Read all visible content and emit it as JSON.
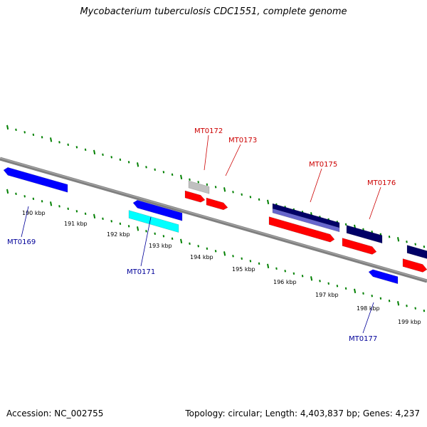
{
  "title": "Mycobacterium tuberculosis CDC1551, complete genome",
  "footer": {
    "accession": "Accession: NC_002755",
    "summary": "Topology: circular; Length: 4,403,837 bp; Genes: 4,237"
  },
  "colors": {
    "forward_gene": "#ff0000",
    "reverse_gene": "#0000ff",
    "dark_gene": "#000066",
    "lavender_gene": "#6666cc",
    "cyan_gene": "#00ffff",
    "grey_gene": "#c0c0c0",
    "backbone": "#808080",
    "ticks": "#008000",
    "forward_label": "#cc0000",
    "reverse_label": "#000099"
  },
  "scale": {
    "kbp_labels": [
      "190 kbp",
      "191 kbp",
      "192 kbp",
      "193 kbp",
      "194 kbp",
      "195 kbp",
      "196 kbp",
      "197 kbp",
      "198 kbp",
      "199 kbp"
    ]
  },
  "gene_labels": [
    {
      "text": "MT0169",
      "strand": "reverse"
    },
    {
      "text": "MT0171",
      "strand": "reverse"
    },
    {
      "text": "MT0172",
      "strand": "forward"
    },
    {
      "text": "MT0173",
      "strand": "forward"
    },
    {
      "text": "MT0175",
      "strand": "forward"
    },
    {
      "text": "MT0176",
      "strand": "forward"
    },
    {
      "text": "MT0177",
      "strand": "reverse"
    }
  ]
}
